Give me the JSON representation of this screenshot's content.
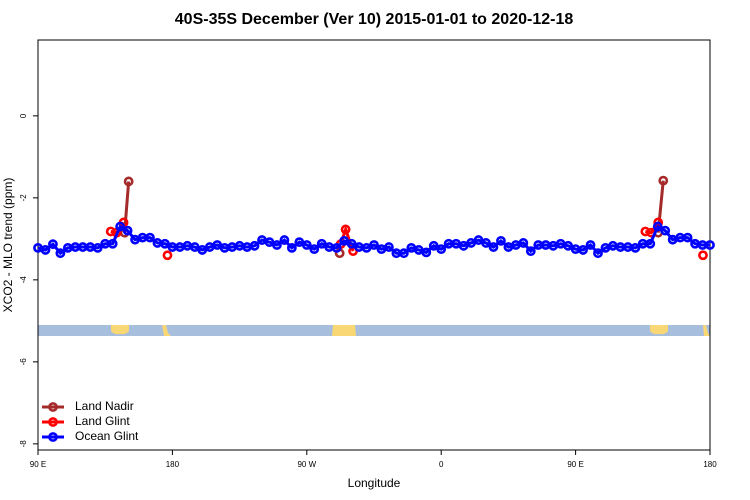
{
  "chart_data": {
    "type": "line",
    "title": "40S-35S December (Ver 10)   2015-01-01 to 2020-12-18",
    "x_label": "Longitude",
    "y_label": "XCO2 - MLO trend (ppm)",
    "xlim": [
      90,
      540
    ],
    "ylim": [
      -8.15,
      1.85
    ],
    "xticks": [
      {
        "value": 90,
        "label": "90 E"
      },
      180,
      {
        "value": 270,
        "label": "90 W"
      },
      {
        "value": 360,
        "label": "0"
      },
      {
        "value": 450,
        "label": "90 E"
      },
      {
        "value": 540,
        "label": "180"
      }
    ],
    "yticks": [
      0,
      -2,
      -4,
      -6,
      -8
    ],
    "legend": "bottom-left",
    "series": [
      {
        "name": "Land Nadir",
        "color": "#a52a2a",
        "x": [
          148,
          150.7,
          null,
          292,
          null,
          505.3,
          508.7
        ],
        "values": [
          -2.85,
          -1.6,
          null,
          -3.35,
          null,
          -2.85,
          -1.58
        ]
      },
      {
        "name": "Land Glint",
        "color": "#ff0000",
        "x": [
          138.7,
          142.7,
          147.3,
          null,
          176.7,
          null,
          292.7,
          296,
          301,
          null,
          496.7,
          500.7,
          505.3,
          null,
          535.3
        ],
        "values": [
          -2.82,
          -2.85,
          -2.6,
          null,
          -3.4,
          null,
          -3.13,
          -2.77,
          -3.3,
          null,
          -2.82,
          -2.85,
          -2.6,
          null,
          -3.4
        ]
      },
      {
        "name": "Ocean Glint",
        "color": "#0000ff",
        "x": [
          90,
          95,
          100,
          105,
          110,
          115,
          120,
          125,
          130,
          135,
          140,
          145,
          150,
          155,
          160,
          165,
          170,
          175,
          180,
          185,
          190,
          195,
          200,
          205,
          210,
          215,
          220,
          225,
          230,
          235,
          240,
          245,
          250,
          255,
          260,
          265,
          270,
          275,
          280,
          285,
          290,
          295,
          300,
          305,
          310,
          315,
          320,
          325,
          330,
          335,
          340,
          345,
          350,
          355,
          360,
          365,
          370,
          375,
          380,
          385,
          390,
          395,
          400,
          405,
          410,
          415,
          420,
          425,
          430,
          435,
          440,
          445,
          450,
          455,
          460,
          465,
          470,
          475,
          480,
          485,
          490,
          495,
          500,
          505,
          510,
          515,
          520,
          525,
          530,
          535,
          540
        ],
        "values": [
          -3.22,
          -3.27,
          -3.13,
          -3.35,
          -3.22,
          -3.2,
          -3.2,
          -3.2,
          -3.22,
          -3.12,
          -3.12,
          -2.7,
          -2.8,
          -3.02,
          -2.97,
          -2.97,
          -3.1,
          -3.12,
          -3.2,
          -3.2,
          -3.17,
          -3.2,
          -3.27,
          -3.2,
          -3.15,
          -3.22,
          -3.2,
          -3.17,
          -3.2,
          -3.17,
          -3.03,
          -3.08,
          -3.15,
          -3.03,
          -3.22,
          -3.08,
          -3.15,
          -3.25,
          -3.12,
          -3.2,
          -3.22,
          -3.05,
          -3.12,
          -3.2,
          -3.22,
          -3.15,
          -3.25,
          -3.2,
          -3.35,
          -3.35,
          -3.22,
          -3.27,
          -3.33,
          -3.17,
          -3.25,
          -3.12,
          -3.12,
          -3.17,
          -3.1,
          -3.03,
          -3.1,
          -3.2,
          -3.05,
          -3.2,
          -3.15,
          -3.1,
          -3.3,
          -3.15,
          -3.15,
          -3.17,
          -3.12,
          -3.17,
          -3.25,
          -3.27,
          -3.15,
          -3.35,
          -3.22,
          -3.17,
          -3.2,
          -3.2,
          -3.22,
          -3.12,
          -3.12,
          -2.7,
          -2.8,
          -3.02,
          -2.97,
          -2.97,
          -3.12,
          -3.15,
          -3.15
        ]
      }
    ]
  }
}
